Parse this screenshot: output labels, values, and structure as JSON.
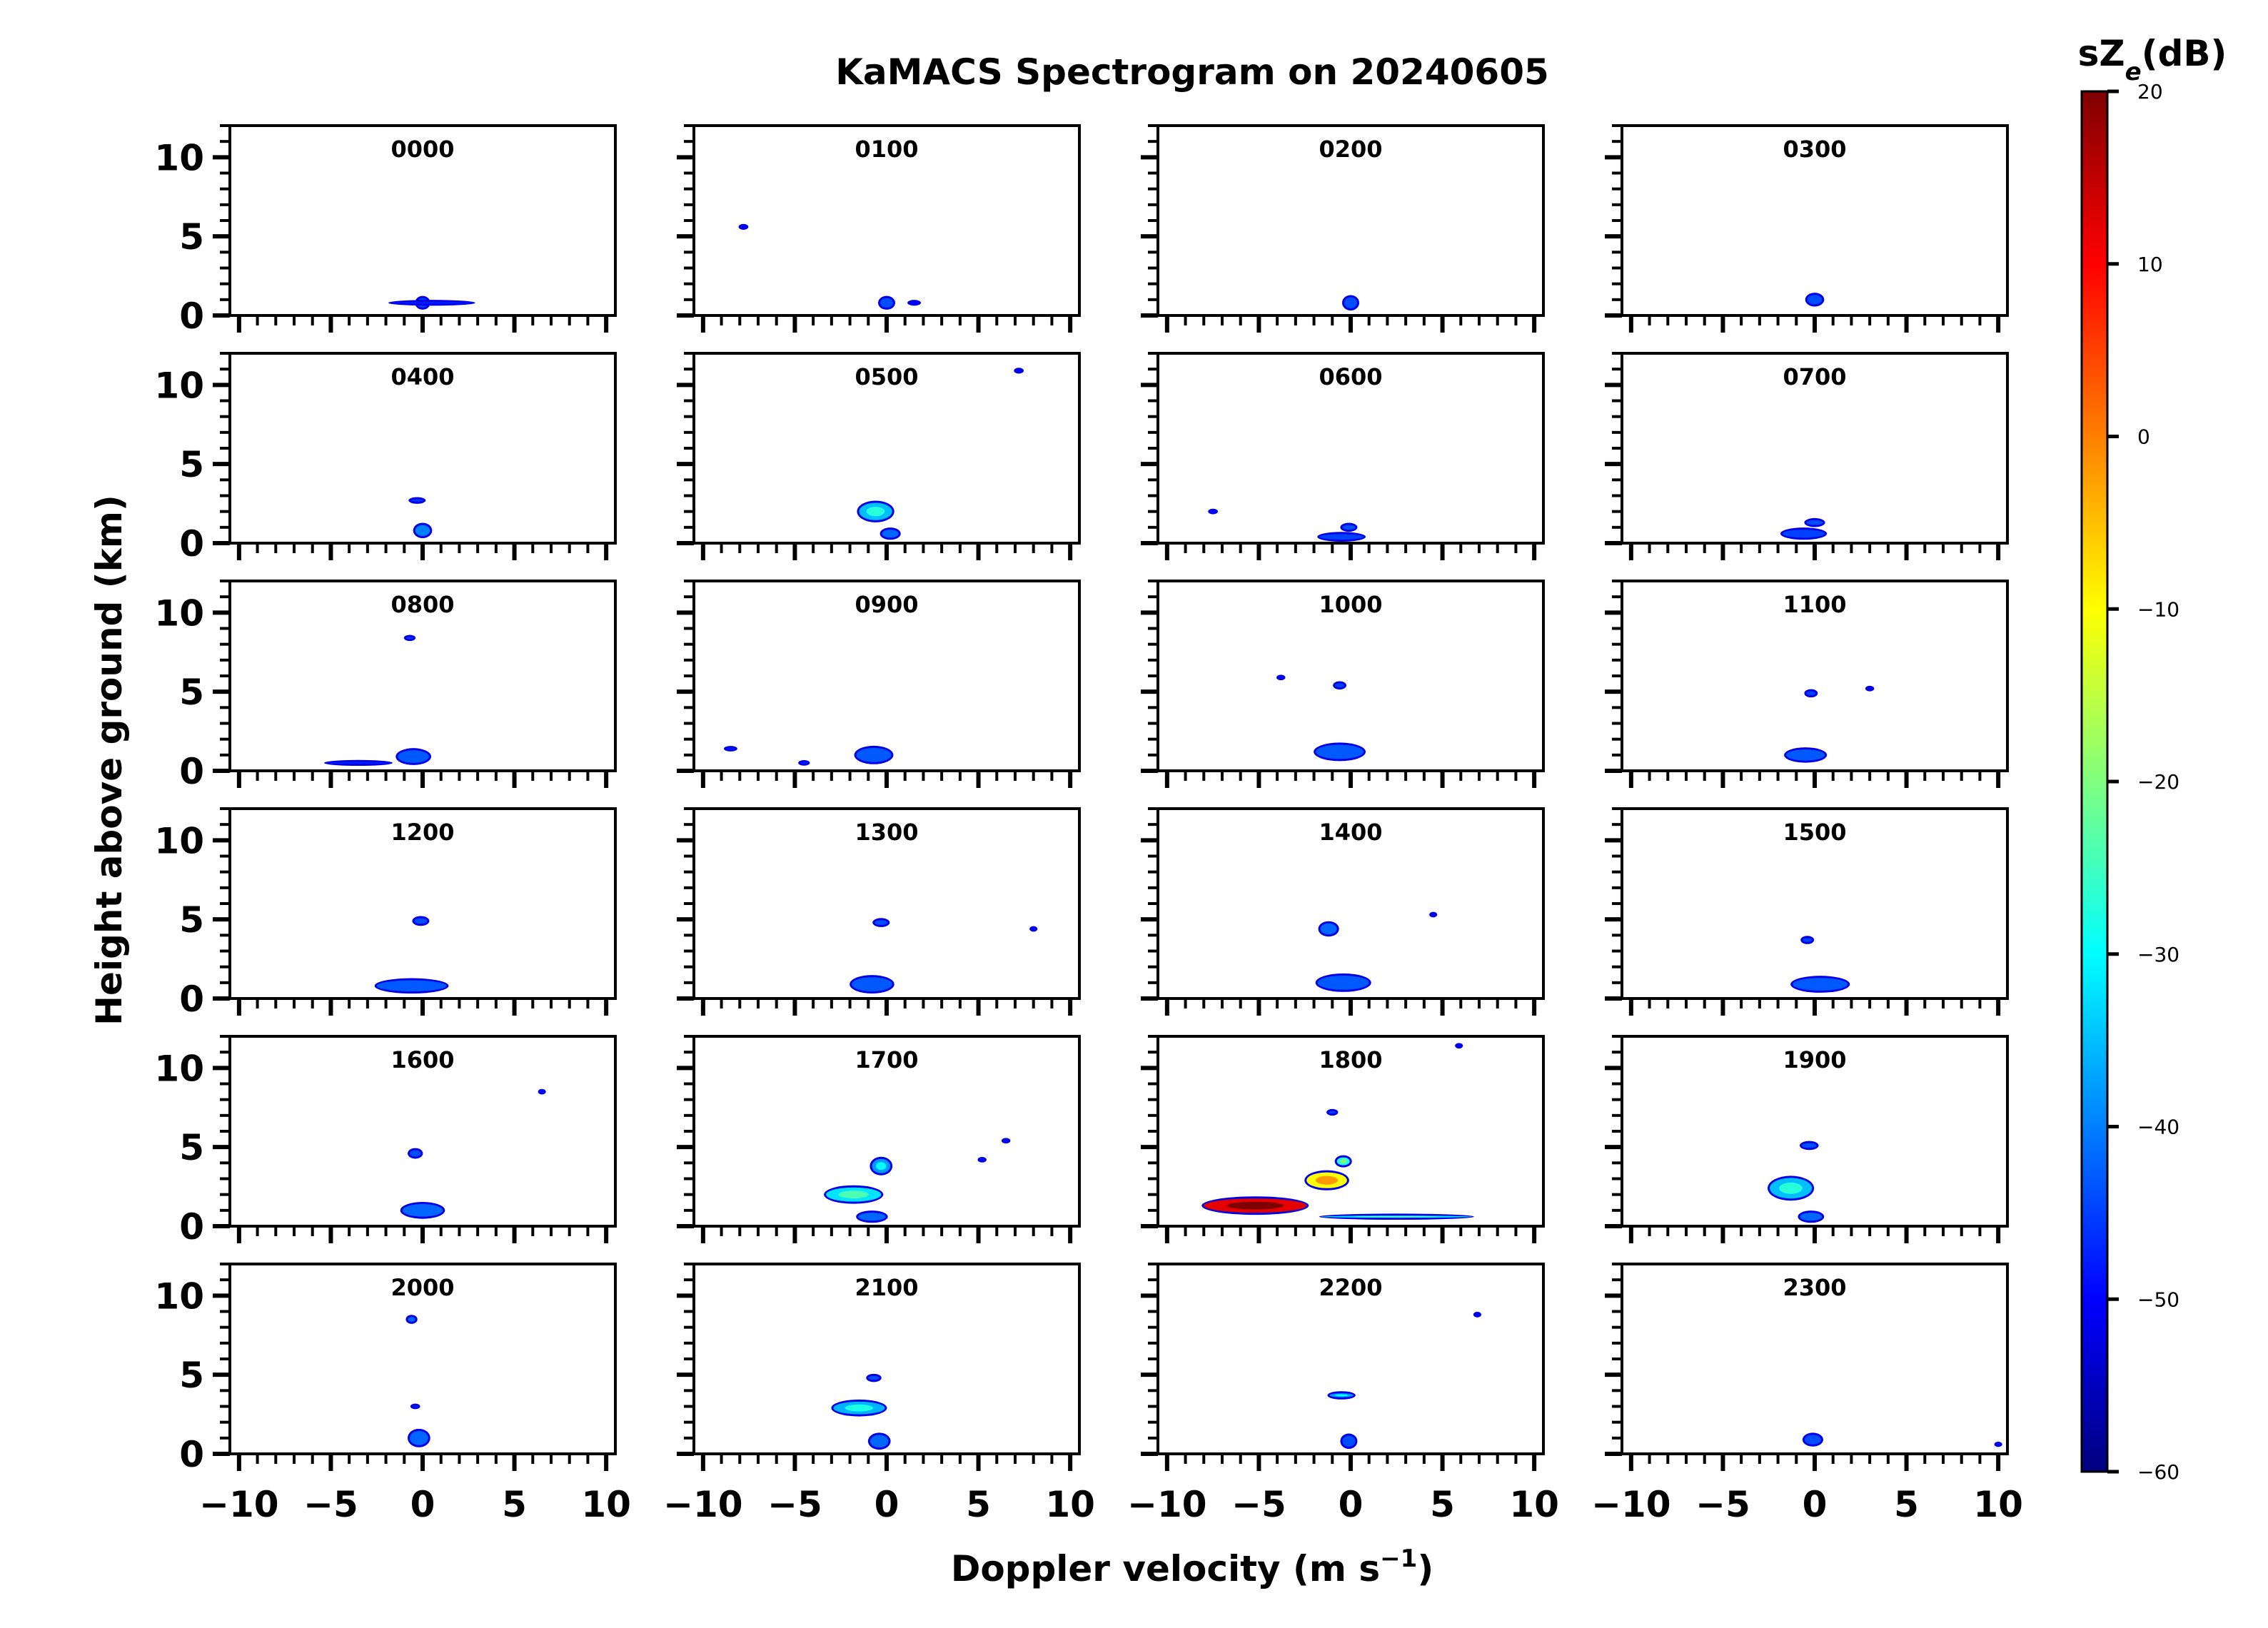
{
  "chart_data": {
    "type": "heatmap",
    "title": "KaMACS Spectrogram on 20240605",
    "xlabel": "Doppler velocity (m s",
    "xlabel_superscript": "−1",
    "xlabel_close": ")",
    "ylabel": "Height above ground (km)",
    "xlim": [
      -10.5,
      10.5
    ],
    "ylim": [
      0,
      12
    ],
    "x_ticks": [
      -10,
      -5,
      0,
      5,
      10
    ],
    "x_tick_labels": [
      "−10",
      "−5",
      "0",
      "5",
      "10"
    ],
    "y_ticks": [
      0,
      5,
      10
    ],
    "y_tick_labels": [
      "0",
      "5",
      "10"
    ],
    "colorbar": {
      "title_main": "sZ",
      "title_sub": "e",
      "title_unit": "(dB)",
      "min": -60,
      "max": 20,
      "ticks": [
        20,
        10,
        0,
        -10,
        -20,
        -30,
        -40,
        -50,
        -60
      ],
      "tick_labels": [
        "20",
        "10",
        "0",
        "−10",
        "−20",
        "−30",
        "−40",
        "−50",
        "−60"
      ],
      "colormap": "jet"
    },
    "panels": [
      {
        "label": "0000",
        "blobs": [
          {
            "v": 0,
            "h": 0.8,
            "w": 0.6,
            "hh": 0.6,
            "z": -45
          },
          {
            "v": 0.5,
            "h": 0.8,
            "w": 4.5,
            "hh": 0.1,
            "z": -48
          }
        ]
      },
      {
        "label": "0100",
        "blobs": [
          {
            "v": 0,
            "h": 0.8,
            "w": 0.7,
            "hh": 0.6,
            "z": -44
          },
          {
            "v": -7.8,
            "h": 5.6,
            "w": 0.3,
            "hh": 0.1,
            "z": -50
          },
          {
            "v": 1.5,
            "h": 0.8,
            "w": 0.5,
            "hh": 0.1,
            "z": -50
          }
        ]
      },
      {
        "label": "0200",
        "blobs": [
          {
            "v": 0,
            "h": 0.8,
            "w": 0.7,
            "hh": 0.7,
            "z": -44
          }
        ]
      },
      {
        "label": "0300",
        "blobs": [
          {
            "v": 0,
            "h": 1.0,
            "w": 0.8,
            "hh": 0.6,
            "z": -44
          }
        ]
      },
      {
        "label": "0400",
        "blobs": [
          {
            "v": 0,
            "h": 0.8,
            "w": 0.8,
            "hh": 0.7,
            "z": -40
          },
          {
            "v": -0.3,
            "h": 2.7,
            "w": 0.7,
            "hh": 0.15,
            "z": -46
          }
        ]
      },
      {
        "label": "0500",
        "blobs": [
          {
            "v": -0.6,
            "h": 2.0,
            "w": 1.8,
            "hh": 1.1,
            "z": -35
          },
          {
            "v": 0.2,
            "h": 0.6,
            "w": 0.9,
            "hh": 0.5,
            "z": -42
          },
          {
            "v": 7.2,
            "h": 10.9,
            "w": 0.3,
            "hh": 0.1,
            "z": -50
          }
        ]
      },
      {
        "label": "0600",
        "blobs": [
          {
            "v": -0.5,
            "h": 0.4,
            "w": 2.4,
            "hh": 0.35,
            "z": -45
          },
          {
            "v": -0.1,
            "h": 1.0,
            "w": 0.7,
            "hh": 0.3,
            "z": -44
          },
          {
            "v": -7.5,
            "h": 2.0,
            "w": 0.3,
            "hh": 0.08,
            "z": -50
          }
        ]
      },
      {
        "label": "0700",
        "blobs": [
          {
            "v": -0.6,
            "h": 0.6,
            "w": 2.3,
            "hh": 0.5,
            "z": -45
          },
          {
            "v": 0,
            "h": 1.3,
            "w": 0.9,
            "hh": 0.3,
            "z": -44
          }
        ]
      },
      {
        "label": "0800",
        "blobs": [
          {
            "v": -0.5,
            "h": 0.9,
            "w": 1.7,
            "hh": 0.8,
            "z": -43
          },
          {
            "v": -3.5,
            "h": 0.5,
            "w": 3.5,
            "hh": 0.1,
            "z": -48
          },
          {
            "v": -0.7,
            "h": 8.4,
            "w": 0.4,
            "hh": 0.12,
            "z": -46
          }
        ]
      },
      {
        "label": "0900",
        "blobs": [
          {
            "v": -0.7,
            "h": 1.0,
            "w": 1.9,
            "hh": 0.9,
            "z": -43
          },
          {
            "v": -8.5,
            "h": 1.4,
            "w": 0.5,
            "hh": 0.08,
            "z": -48
          },
          {
            "v": -4.5,
            "h": 0.5,
            "w": 0.4,
            "hh": 0.08,
            "z": -48
          }
        ]
      },
      {
        "label": "1000",
        "blobs": [
          {
            "v": -0.6,
            "h": 1.2,
            "w": 2.6,
            "hh": 0.9,
            "z": -43
          },
          {
            "v": -0.6,
            "h": 5.4,
            "w": 0.5,
            "hh": 0.25,
            "z": -45
          },
          {
            "v": -3.8,
            "h": 5.9,
            "w": 0.25,
            "hh": 0.08,
            "z": -50
          }
        ]
      },
      {
        "label": "1100",
        "blobs": [
          {
            "v": -0.5,
            "h": 1.0,
            "w": 2.1,
            "hh": 0.7,
            "z": -43
          },
          {
            "v": -0.2,
            "h": 4.9,
            "w": 0.5,
            "hh": 0.25,
            "z": -45
          },
          {
            "v": 3.0,
            "h": 5.2,
            "w": 0.25,
            "hh": 0.08,
            "z": -50
          }
        ]
      },
      {
        "label": "1200",
        "blobs": [
          {
            "v": -0.6,
            "h": 0.8,
            "w": 3.8,
            "hh": 0.7,
            "z": -43
          },
          {
            "v": -0.1,
            "h": 4.9,
            "w": 0.7,
            "hh": 0.35,
            "z": -44
          }
        ]
      },
      {
        "label": "1300",
        "blobs": [
          {
            "v": -0.8,
            "h": 0.9,
            "w": 2.2,
            "hh": 0.9,
            "z": -43
          },
          {
            "v": -0.3,
            "h": 4.8,
            "w": 0.7,
            "hh": 0.3,
            "z": -44
          },
          {
            "v": 8.0,
            "h": 4.4,
            "w": 0.2,
            "hh": 0.08,
            "z": -50
          }
        ]
      },
      {
        "label": "1400",
        "blobs": [
          {
            "v": -0.4,
            "h": 1.0,
            "w": 2.8,
            "hh": 0.9,
            "z": -43
          },
          {
            "v": -1.2,
            "h": 4.4,
            "w": 0.9,
            "hh": 0.7,
            "z": -42
          },
          {
            "v": 4.5,
            "h": 5.3,
            "w": 0.2,
            "hh": 0.08,
            "z": -50
          }
        ]
      },
      {
        "label": "1500",
        "blobs": [
          {
            "v": 0.3,
            "h": 0.9,
            "w": 3.0,
            "hh": 0.8,
            "z": -43
          },
          {
            "v": -0.4,
            "h": 3.7,
            "w": 0.5,
            "hh": 0.25,
            "z": -45
          }
        ]
      },
      {
        "label": "1600",
        "blobs": [
          {
            "v": 0,
            "h": 1.0,
            "w": 2.2,
            "hh": 0.8,
            "z": -42
          },
          {
            "v": -0.4,
            "h": 4.6,
            "w": 0.6,
            "hh": 0.4,
            "z": -44
          },
          {
            "v": 6.5,
            "h": 8.5,
            "w": 0.2,
            "hh": 0.08,
            "z": -50
          }
        ]
      },
      {
        "label": "1700",
        "blobs": [
          {
            "v": -1.8,
            "h": 2.0,
            "w": 3.0,
            "hh": 0.9,
            "z": -32
          },
          {
            "v": -0.3,
            "h": 3.8,
            "w": 1.0,
            "hh": 0.9,
            "z": -38
          },
          {
            "v": -0.8,
            "h": 0.6,
            "w": 1.5,
            "hh": 0.5,
            "z": -42
          },
          {
            "v": 6.5,
            "h": 5.4,
            "w": 0.25,
            "hh": 0.08,
            "z": -50
          },
          {
            "v": 5.2,
            "h": 4.2,
            "w": 0.25,
            "hh": 0.08,
            "z": -50
          }
        ]
      },
      {
        "label": "1800",
        "blobs": [
          {
            "v": -5.2,
            "h": 1.3,
            "w": 5.6,
            "hh": 0.9,
            "z": 12
          },
          {
            "v": -1.3,
            "h": 2.9,
            "w": 2.2,
            "hh": 1.0,
            "z": -10
          },
          {
            "v": -0.4,
            "h": 4.1,
            "w": 0.7,
            "hh": 0.5,
            "z": -28
          },
          {
            "v": -1.0,
            "h": 7.2,
            "w": 0.4,
            "hh": 0.15,
            "z": -45
          },
          {
            "v": 2.5,
            "h": 0.6,
            "w": 8.2,
            "hh": 0.12,
            "z": -32
          },
          {
            "v": 5.9,
            "h": 11.4,
            "w": 0.2,
            "hh": 0.08,
            "z": -50
          }
        ]
      },
      {
        "label": "1900",
        "blobs": [
          {
            "v": -1.3,
            "h": 2.4,
            "w": 2.3,
            "hh": 1.3,
            "z": -35
          },
          {
            "v": -0.2,
            "h": 0.6,
            "w": 1.2,
            "hh": 0.5,
            "z": -42
          },
          {
            "v": -0.3,
            "h": 5.1,
            "w": 0.8,
            "hh": 0.3,
            "z": -44
          }
        ]
      },
      {
        "label": "2000",
        "blobs": [
          {
            "v": -0.2,
            "h": 1.0,
            "w": 1.0,
            "hh": 0.9,
            "z": -42
          },
          {
            "v": -0.6,
            "h": 8.5,
            "w": 0.4,
            "hh": 0.3,
            "z": -42
          },
          {
            "v": -0.4,
            "h": 3.0,
            "w": 0.3,
            "hh": 0.08,
            "z": -48
          }
        ]
      },
      {
        "label": "2100",
        "blobs": [
          {
            "v": -1.5,
            "h": 2.9,
            "w": 2.8,
            "hh": 0.8,
            "z": -36
          },
          {
            "v": -0.7,
            "h": 4.8,
            "w": 0.6,
            "hh": 0.25,
            "z": -44
          },
          {
            "v": -0.4,
            "h": 0.8,
            "w": 1.0,
            "hh": 0.8,
            "z": -42
          }
        ]
      },
      {
        "label": "2200",
        "blobs": [
          {
            "v": -0.5,
            "h": 3.7,
            "w": 1.3,
            "hh": 0.25,
            "z": -38
          },
          {
            "v": -0.1,
            "h": 0.8,
            "w": 0.7,
            "hh": 0.7,
            "z": -44
          },
          {
            "v": 6.9,
            "h": 8.8,
            "w": 0.2,
            "hh": 0.08,
            "z": -50
          }
        ]
      },
      {
        "label": "2300",
        "blobs": [
          {
            "v": -0.1,
            "h": 0.9,
            "w": 0.9,
            "hh": 0.6,
            "z": -44
          },
          {
            "v": 10.0,
            "h": 0.6,
            "w": 0.2,
            "hh": 0.06,
            "z": -50
          }
        ]
      }
    ]
  }
}
